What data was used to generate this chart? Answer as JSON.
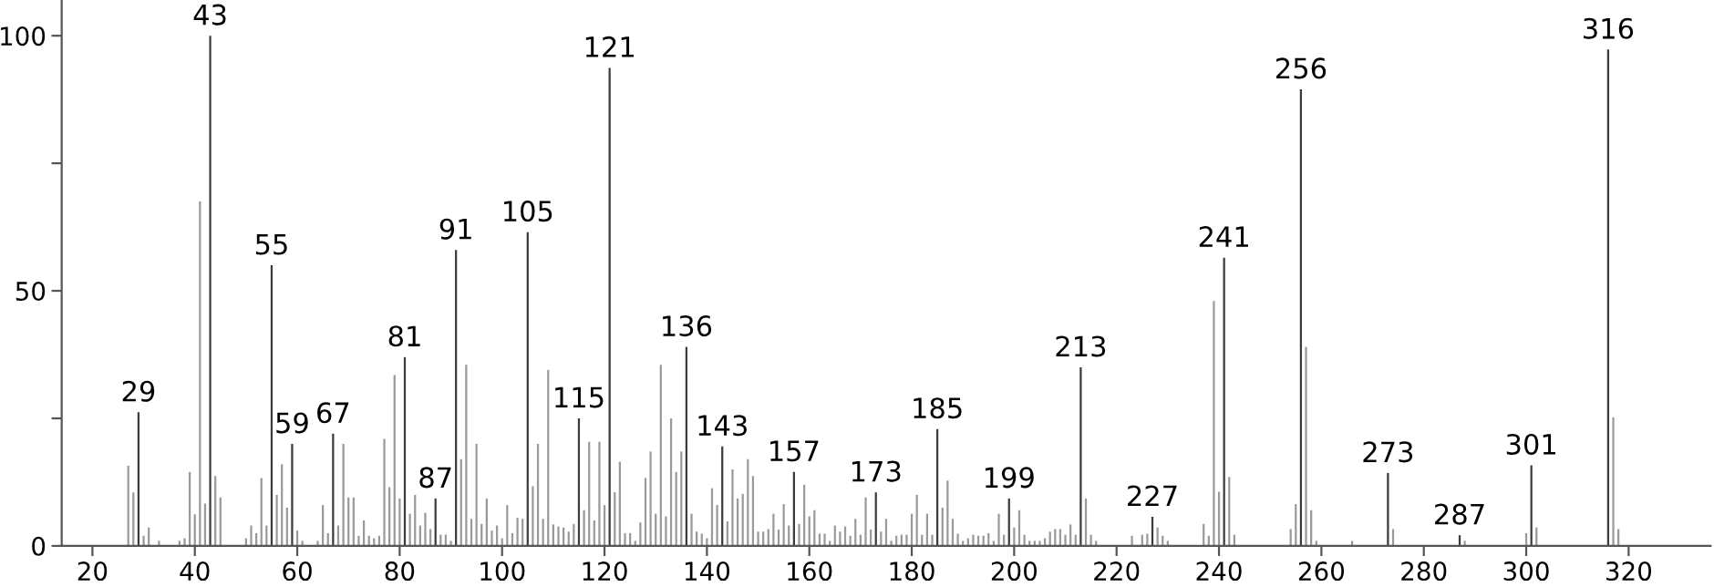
{
  "chart_data": {
    "type": "bar",
    "xlim": [
      14,
      336
    ],
    "ylim": [
      0,
      107
    ],
    "xticks": [
      20,
      40,
      60,
      80,
      100,
      120,
      140,
      160,
      180,
      200,
      220,
      240,
      260,
      280,
      300,
      320
    ],
    "yticks": [
      0,
      {
        "value": 25,
        "label": null
      },
      50,
      {
        "value": 75,
        "label": null
      },
      100
    ],
    "grid": false,
    "series": [
      {
        "color": "#9a9a9a",
        "x": [
          27,
          28,
          30,
          31,
          33,
          37,
          38,
          39,
          40,
          41,
          42,
          44,
          45,
          50,
          51,
          52,
          53,
          54,
          56,
          57,
          58,
          60,
          61,
          64,
          65,
          66,
          68,
          69,
          70,
          71,
          72,
          73,
          74,
          75,
          76,
          77,
          78,
          79,
          80,
          82,
          83,
          84,
          85,
          86,
          88,
          89,
          90,
          92,
          93,
          94,
          95,
          96,
          97,
          98,
          99,
          100,
          101,
          102,
          103,
          104,
          106,
          107,
          108,
          109,
          110,
          111,
          112,
          113,
          114,
          116,
          117,
          118,
          119,
          120,
          122,
          123,
          124,
          125,
          126,
          127,
          128,
          129,
          130,
          131,
          132,
          133,
          134,
          135,
          137,
          138,
          139,
          140,
          141,
          142,
          144,
          145,
          146,
          147,
          148,
          149,
          150,
          151,
          152,
          153,
          154,
          155,
          156,
          158,
          159,
          160,
          161,
          162,
          163,
          164,
          165,
          166,
          167,
          168,
          169,
          170,
          171,
          172,
          174,
          175,
          176,
          177,
          178,
          179,
          180,
          181,
          182,
          183,
          184,
          186,
          187,
          188,
          189,
          190,
          191,
          192,
          193,
          194,
          195,
          196,
          197,
          198,
          200,
          201,
          202,
          203,
          204,
          205,
          206,
          207,
          208,
          209,
          210,
          211,
          212,
          214,
          215,
          216,
          223,
          225,
          226,
          228,
          229,
          230,
          237,
          238,
          239,
          240,
          242,
          243,
          254,
          255,
          257,
          258,
          259,
          266,
          274,
          288,
          300,
          302,
          317,
          318
        ],
        "values": [
          15.7,
          10.5,
          2,
          3.6,
          1,
          1,
          1.5,
          14.5,
          6.2,
          67.5,
          8.3,
          13.7,
          9.5,
          1.5,
          4,
          2.5,
          13.3,
          4,
          10,
          16,
          7.5,
          3,
          1,
          1,
          8,
          2.5,
          4,
          20,
          9.5,
          9.5,
          2,
          5,
          2,
          1.5,
          2,
          21,
          11.5,
          33.5,
          9.3,
          6.3,
          10,
          4,
          6.5,
          3.3,
          2.2,
          2.2,
          1,
          17,
          35.5,
          5.3,
          20,
          4.3,
          9.3,
          3,
          4,
          1.5,
          8,
          2.5,
          5.5,
          5.3,
          11.7,
          20,
          5.3,
          34.5,
          4.2,
          3.8,
          3.6,
          2.8,
          4.3,
          7,
          20.4,
          5,
          20.4,
          8,
          10.5,
          16.5,
          2.5,
          2.5,
          1,
          4.6,
          13.3,
          18.5,
          6.3,
          35.5,
          5.8,
          25,
          14.5,
          18.5,
          6.3,
          2.8,
          2.4,
          1.5,
          11.3,
          8,
          4.8,
          15,
          9.3,
          10.2,
          17,
          13.7,
          2.8,
          2.8,
          3.3,
          6.3,
          3.2,
          8.2,
          4,
          4.3,
          12,
          5.8,
          7,
          2.4,
          2.4,
          1,
          4,
          2.8,
          3.8,
          2,
          5.3,
          2.2,
          9.5,
          3.2,
          2.8,
          5.3,
          1,
          2,
          2.2,
          2.2,
          6.3,
          10,
          2.2,
          6.3,
          2.2,
          7.5,
          12.8,
          5.3,
          2.4,
          1,
          1.5,
          2.2,
          2,
          2,
          2.5,
          1,
          6.3,
          2.2,
          3.6,
          7,
          2.2,
          1,
          1,
          1,
          1.5,
          2.8,
          3.3,
          3.3,
          2.2,
          4.2,
          2.2,
          9.3,
          2.2,
          1,
          2,
          2.2,
          2.4,
          3.6,
          2,
          1,
          4.3,
          2,
          48,
          10.6,
          13.5,
          2.2,
          3.3,
          8.2,
          39,
          7,
          1,
          1,
          3.3,
          1,
          2.5,
          3.6,
          25.2,
          3.3
        ]
      },
      {
        "color": "#3c3c3c",
        "x": [
          29,
          43,
          55,
          59,
          67,
          81,
          87,
          91,
          105,
          115,
          121,
          136,
          143,
          157,
          173,
          185,
          199,
          213,
          227,
          241,
          256,
          273,
          287,
          301,
          316
        ],
        "values": [
          26.2,
          100,
          55,
          20,
          22,
          37,
          9.3,
          58,
          61.5,
          25,
          93.7,
          39,
          19.5,
          14.5,
          10.5,
          22.9,
          9.3,
          35,
          5.7,
          56.5,
          89.5,
          14.3,
          2.1,
          15.8,
          97.3
        ]
      }
    ],
    "annotations": [
      {
        "text": "29",
        "x": 29,
        "y": 26.2
      },
      {
        "text": "43",
        "x": 43,
        "y": 100
      },
      {
        "text": "55",
        "x": 55,
        "y": 55
      },
      {
        "text": "59",
        "x": 59,
        "y": 20
      },
      {
        "text": "67",
        "x": 67,
        "y": 22
      },
      {
        "text": "81",
        "x": 81,
        "y": 37
      },
      {
        "text": "87",
        "x": 87,
        "y": 9.3
      },
      {
        "text": "91",
        "x": 91,
        "y": 58
      },
      {
        "text": "105",
        "x": 105,
        "y": 61.5
      },
      {
        "text": "115",
        "x": 115,
        "y": 25
      },
      {
        "text": "121",
        "x": 121,
        "y": 93.7
      },
      {
        "text": "136",
        "x": 136,
        "y": 39
      },
      {
        "text": "143",
        "x": 143,
        "y": 19.5
      },
      {
        "text": "157",
        "x": 157,
        "y": 14.5
      },
      {
        "text": "173",
        "x": 173,
        "y": 10.5
      },
      {
        "text": "185",
        "x": 185,
        "y": 22.9
      },
      {
        "text": "199",
        "x": 199,
        "y": 9.3
      },
      {
        "text": "213",
        "x": 213,
        "y": 35
      },
      {
        "text": "227",
        "x": 227,
        "y": 5.7
      },
      {
        "text": "241",
        "x": 241,
        "y": 56.5
      },
      {
        "text": "256",
        "x": 256,
        "y": 89.5
      },
      {
        "text": "273",
        "x": 273,
        "y": 14.3
      },
      {
        "text": "287",
        "x": 287,
        "y": 2.1
      },
      {
        "text": "301",
        "x": 301,
        "y": 15.8
      },
      {
        "text": "316",
        "x": 316,
        "y": 97.3
      }
    ]
  }
}
